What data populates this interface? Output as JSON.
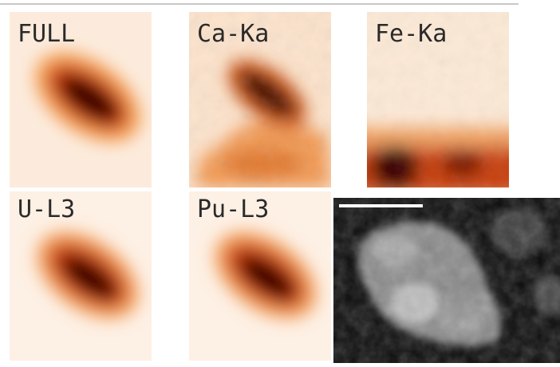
{
  "panels": [
    {
      "label": "FULL"
    },
    {
      "label": "Ca-Ka"
    },
    {
      "label": "Fe-Ka"
    },
    {
      "label": "U-L3"
    },
    {
      "label": "Pu-L3"
    }
  ]
}
